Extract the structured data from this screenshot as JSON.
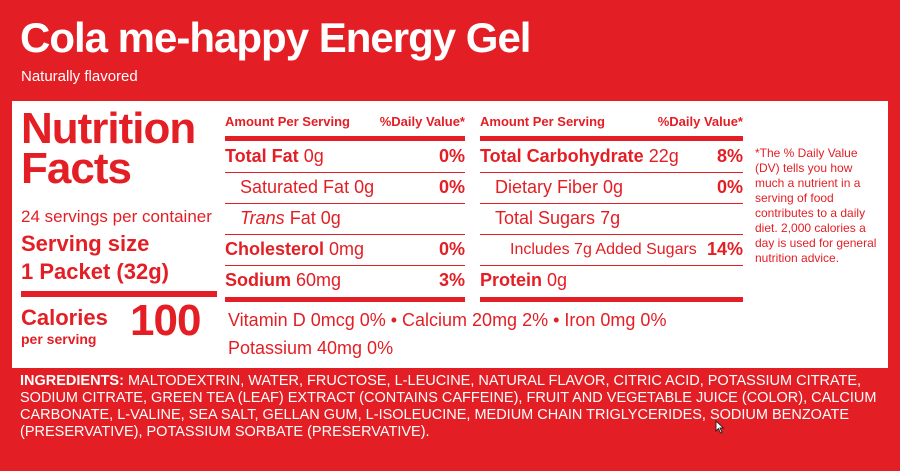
{
  "header": {
    "title": "Cola me-happy Energy Gel",
    "subtitle": "Naturally flavored"
  },
  "facts": {
    "title_line1": "Nutrition",
    "title_line2": "Facts",
    "servings_per_container": "24 servings per container",
    "serving_size_label": "Serving size",
    "serving_size_value": "1 Packet (32g)",
    "calories_label": "Calories",
    "calories_sub": "per serving",
    "calories_value": "100"
  },
  "table_header": {
    "amount": "Amount Per Serving",
    "daily_value": "%Daily Value*"
  },
  "left_rows": [
    {
      "name": "Total Fat",
      "amount": "0g",
      "pct": "0%"
    },
    {
      "name": "Saturated Fat",
      "amount": "0g",
      "pct": "0%"
    },
    {
      "name_italic": "Trans",
      "name": "Fat",
      "amount": "0g"
    },
    {
      "name": "Cholesterol",
      "amount": "0mg",
      "pct": "0%"
    },
    {
      "name": "Sodium",
      "amount": "60mg",
      "pct": "3%"
    }
  ],
  "right_rows": [
    {
      "name": "Total Carbohydrate",
      "amount": "22g",
      "pct": "8%"
    },
    {
      "name": "Dietary Fiber",
      "amount": "0g",
      "pct": "0%"
    },
    {
      "name": "Total Sugars",
      "amount": "7g"
    },
    {
      "name": "Includes 7g Added Sugars",
      "pct": "14%"
    },
    {
      "name": "Protein",
      "amount": "0g"
    }
  ],
  "vitamins": {
    "line1": "Vitamin D 0mcg 0% • Calcium 20mg 2% • Iron 0mg 0%",
    "line2": "Potassium 40mg 0%"
  },
  "footnote": "*The % Daily Value (DV) tells you how much a nutrient in a serving of food contributes to a daily diet. 2,000 calories a day is used for general nutrition advice.",
  "ingredients": {
    "label": "INGREDIENTS:",
    "text": " MALTODEXTRIN, WATER, FRUCTOSE, L-LEUCINE, NATURAL FLAVOR, CITRIC ACID, POTASSIUM CITRATE, SODIUM CITRATE, GREEN TEA (LEAF) EXTRACT (CONTAINS CAFFEINE), FRUIT AND VEGETABLE JUICE (COLOR), CALCIUM CARBONATE, L-VALINE, SEA SALT, GELLAN GUM, L-ISOLEUCINE, MEDIUM CHAIN TRIGLYCERIDES, SODIUM BENZOATE (PRESERVATIVE), POTASSIUM SORBATE (PRESERVATIVE)."
  },
  "colors": {
    "brand_red": "#e31e24",
    "panel_white": "#ffffff"
  }
}
